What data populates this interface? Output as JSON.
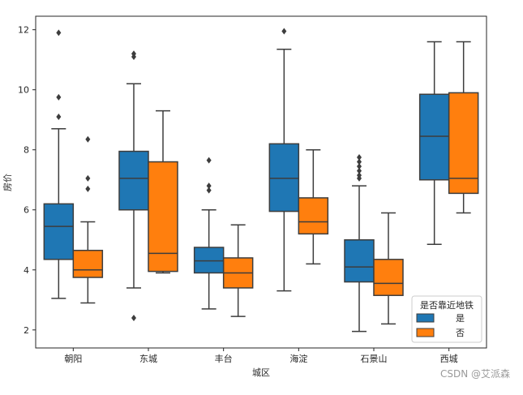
{
  "chart_data": {
    "type": "boxplot",
    "xlabel": "城区",
    "ylabel": "房价",
    "categories": [
      "朝阳",
      "东城",
      "丰台",
      "海淀",
      "石景山",
      "西城"
    ],
    "ylim": [
      1.4,
      12.45
    ],
    "yticks": [
      2,
      4,
      6,
      8,
      10,
      12
    ],
    "legend": {
      "title": "是否靠近地铁",
      "position": "lower-right"
    },
    "series": [
      {
        "name": "是",
        "color": "#1f77b4",
        "boxes": [
          {
            "whisker_low": 3.05,
            "q1": 4.35,
            "median": 5.45,
            "q3": 6.2,
            "whisker_high": 8.7,
            "outliers": [
              9.1,
              9.75,
              11.9
            ]
          },
          {
            "whisker_low": 3.4,
            "q1": 6.0,
            "median": 7.05,
            "q3": 7.95,
            "whisker_high": 10.2,
            "outliers": [
              2.4,
              11.1,
              11.2
            ]
          },
          {
            "whisker_low": 2.7,
            "q1": 3.9,
            "median": 4.3,
            "q3": 4.75,
            "whisker_high": 6.0,
            "outliers": [
              6.65,
              6.8,
              7.65
            ]
          },
          {
            "whisker_low": 3.3,
            "q1": 5.95,
            "median": 7.05,
            "q3": 8.2,
            "whisker_high": 11.35,
            "outliers": [
              11.95
            ]
          },
          {
            "whisker_low": 1.95,
            "q1": 3.6,
            "median": 4.1,
            "q3": 5.0,
            "whisker_high": 6.8,
            "outliers": [
              7.05,
              7.15,
              7.3,
              7.45,
              7.6,
              7.75
            ]
          },
          {
            "whisker_low": 4.85,
            "q1": 7.0,
            "median": 8.45,
            "q3": 9.85,
            "whisker_high": 11.6,
            "outliers": []
          }
        ]
      },
      {
        "name": "否",
        "color": "#ff7f0e",
        "boxes": [
          {
            "whisker_low": 2.9,
            "q1": 3.75,
            "median": 4.0,
            "q3": 4.65,
            "whisker_high": 5.6,
            "outliers": [
              6.7,
              7.05,
              8.35
            ]
          },
          {
            "whisker_low": 3.9,
            "q1": 3.95,
            "median": 4.55,
            "q3": 7.6,
            "whisker_high": 9.3,
            "outliers": []
          },
          {
            "whisker_low": 2.45,
            "q1": 3.4,
            "median": 3.9,
            "q3": 4.4,
            "whisker_high": 5.5,
            "outliers": []
          },
          {
            "whisker_low": 4.2,
            "q1": 5.2,
            "median": 5.6,
            "q3": 6.4,
            "whisker_high": 8.0,
            "outliers": []
          },
          {
            "whisker_low": 2.2,
            "q1": 3.15,
            "median": 3.55,
            "q3": 4.35,
            "whisker_high": 5.9,
            "outliers": []
          },
          {
            "whisker_low": 5.9,
            "q1": 6.55,
            "median": 7.05,
            "q3": 9.9,
            "whisker_high": 11.6,
            "outliers": []
          }
        ]
      }
    ]
  },
  "watermark": "CSDN @艾派森"
}
